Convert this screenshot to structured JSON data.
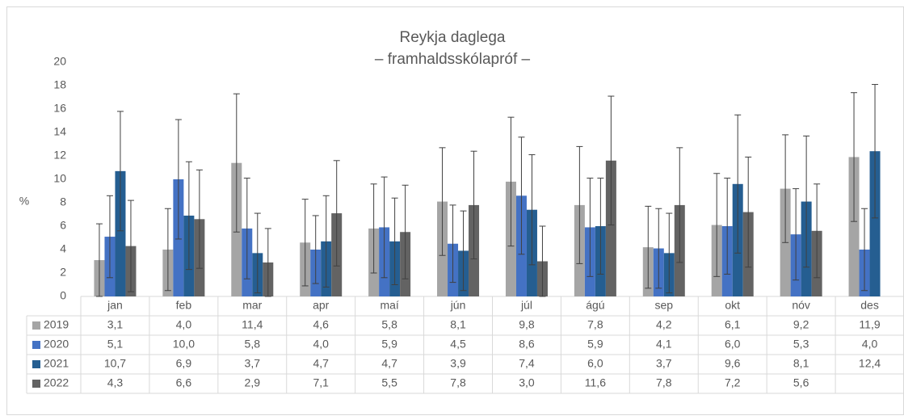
{
  "chart_data": {
    "type": "bar",
    "title": "Reykja daglega",
    "subtitle": "– framhaldsskólapróf –",
    "y_label": "%",
    "categories": [
      "jan",
      "feb",
      "mar",
      "apr",
      "maí",
      "jún",
      "júl",
      "ágú",
      "sep",
      "okt",
      "nóv",
      "des"
    ],
    "ylim": [
      0,
      20
    ],
    "yticks": [
      0,
      2,
      4,
      6,
      8,
      10,
      12,
      14,
      16,
      18,
      20
    ],
    "grid": false,
    "series": [
      {
        "name": "2019",
        "color": "#a5a5a5",
        "values": [
          3.1,
          4.0,
          11.4,
          4.6,
          5.8,
          8.1,
          9.8,
          7.8,
          4.2,
          6.1,
          9.2,
          11.9
        ],
        "value_labels": [
          "3,1",
          "4,0",
          "11,4",
          "4,6",
          "5,8",
          "8,1",
          "9,8",
          "7,8",
          "4,2",
          "6,1",
          "9,2",
          "11,9"
        ],
        "errors": [
          3.1,
          3.5,
          5.9,
          3.7,
          3.8,
          4.6,
          5.5,
          5.0,
          3.5,
          4.4,
          4.6,
          5.5
        ]
      },
      {
        "name": "2020",
        "color": "#4472c4",
        "values": [
          5.1,
          10.0,
          5.8,
          4.0,
          5.9,
          4.5,
          8.6,
          5.9,
          4.1,
          6.0,
          5.3,
          4.0
        ],
        "value_labels": [
          "5,1",
          "10,0",
          "5,8",
          "4,0",
          "5,9",
          "4,5",
          "8,6",
          "5,9",
          "4,1",
          "6,0",
          "5,3",
          "4,0"
        ],
        "errors": [
          3.5,
          5.1,
          4.3,
          2.9,
          4.3,
          3.3,
          5.0,
          4.2,
          3.4,
          4.1,
          3.9,
          3.5
        ]
      },
      {
        "name": "2021",
        "color": "#255e91",
        "values": [
          10.7,
          6.9,
          3.7,
          4.7,
          4.7,
          3.9,
          7.4,
          6.0,
          3.7,
          9.6,
          8.1,
          12.4
        ],
        "value_labels": [
          "10,7",
          "6,9",
          "3,7",
          "4,7",
          "4,7",
          "3,9",
          "7,4",
          "6,0",
          "3,7",
          "9,6",
          "8,1",
          "12,4"
        ],
        "errors": [
          5.1,
          4.6,
          3.4,
          3.9,
          3.7,
          3.4,
          4.7,
          4.1,
          3.4,
          5.9,
          5.6,
          5.7
        ]
      },
      {
        "name": "2022",
        "color": "#636363",
        "values": [
          4.3,
          6.6,
          2.9,
          7.1,
          5.5,
          7.8,
          3.0,
          11.6,
          7.8,
          7.2,
          5.6,
          null
        ],
        "value_labels": [
          "4,3",
          "6,6",
          "2,9",
          "7,1",
          "5,5",
          "7,8",
          "3,0",
          "11,6",
          "7,8",
          "7,2",
          "5,6",
          null
        ],
        "errors": [
          3.9,
          4.2,
          2.9,
          4.5,
          4.0,
          4.6,
          3.0,
          5.5,
          4.9,
          4.7,
          4.0,
          null
        ]
      }
    ]
  }
}
